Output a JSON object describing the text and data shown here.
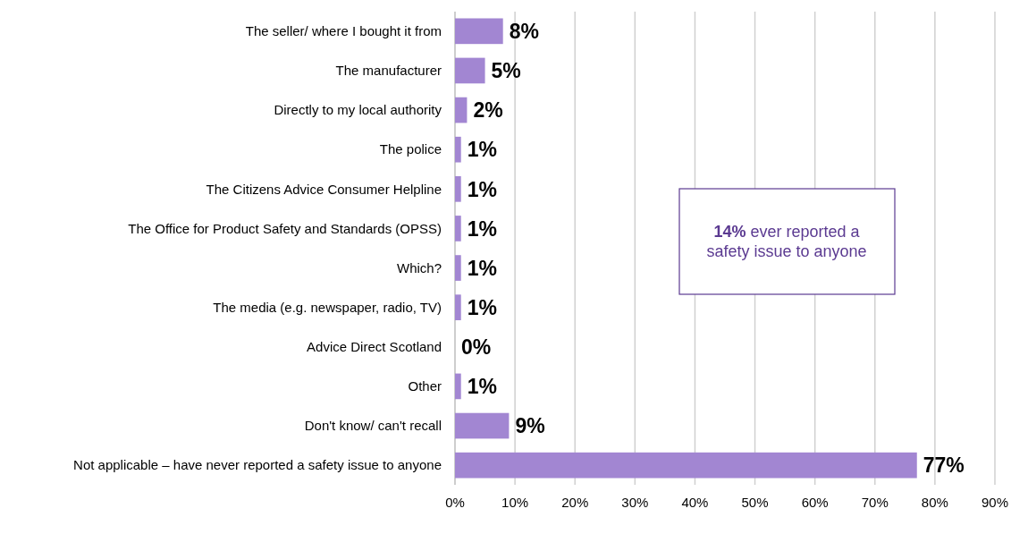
{
  "chart_data": {
    "type": "bar",
    "orientation": "horizontal",
    "categories": [
      "The seller/ where I bought it from",
      "The manufacturer",
      "Directly to my local authority",
      "The police",
      "The Citizens Advice Consumer Helpline",
      "The Office for Product Safety and Standards (OPSS)",
      "Which?",
      "The media (e.g. newspaper, radio, TV)",
      "Advice Direct Scotland",
      "Other",
      "Don't know/ can't recall",
      "Not applicable – have never reported a safety issue to anyone"
    ],
    "values": [
      8,
      5,
      2,
      1,
      1,
      1,
      1,
      1,
      0,
      1,
      9,
      77
    ],
    "color": "#a286d2",
    "value_labels": [
      "8%",
      "5%",
      "2%",
      "1%",
      "1%",
      "1%",
      "1%",
      "1%",
      "0%",
      "1%",
      "9%",
      "77%"
    ],
    "xlim": [
      0,
      90
    ],
    "xticks": [
      {
        "value": 0,
        "label": "0%"
      },
      {
        "value": 10,
        "label": "10%"
      },
      {
        "value": 20,
        "label": "20%"
      },
      {
        "value": 30,
        "label": "30%"
      },
      {
        "value": 40,
        "label": "40%"
      },
      {
        "value": 50,
        "label": "50%"
      },
      {
        "value": 60,
        "label": "60%"
      },
      {
        "value": 70,
        "label": "70%"
      },
      {
        "value": 80,
        "label": "80%"
      },
      {
        "value": 90,
        "label": "90%"
      }
    ],
    "grid": "x",
    "annotations": [
      "14% ever reported a safety issue to anyone"
    ]
  }
}
